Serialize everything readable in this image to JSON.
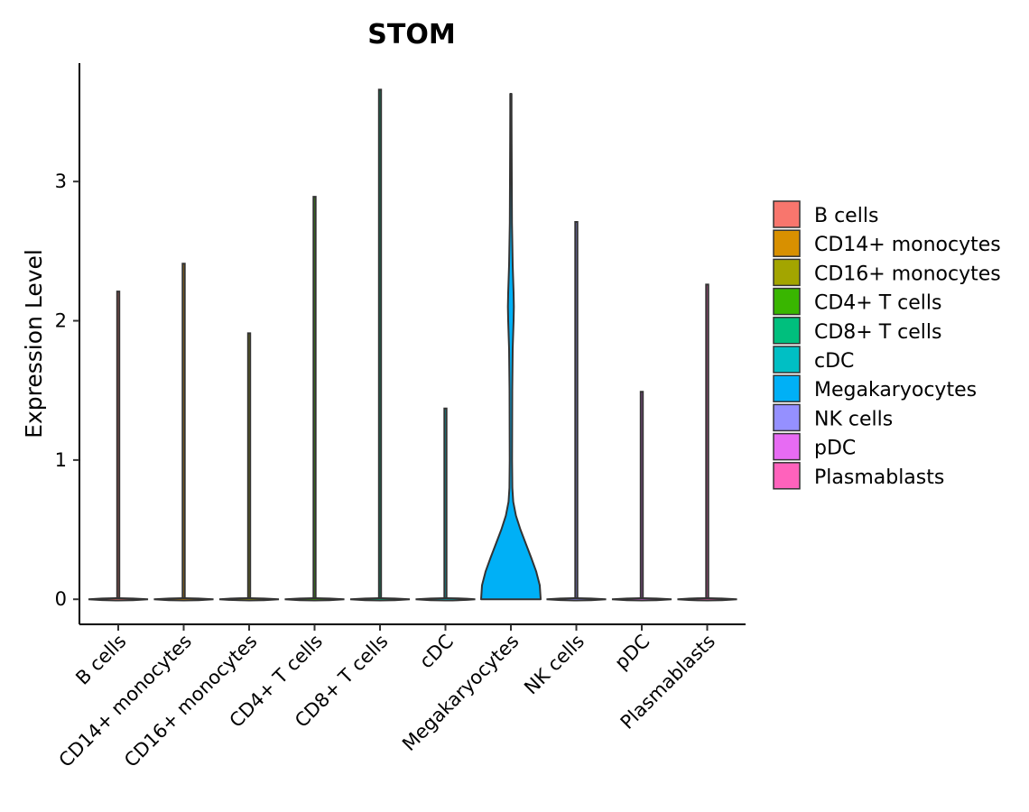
{
  "chart_data": {
    "type": "violin",
    "title": "STOM",
    "xlabel": "",
    "ylabel": "Expression Level",
    "ylim": [
      -0.18,
      3.85
    ],
    "yticks": [
      0,
      1,
      2,
      3
    ],
    "ytick_labels": [
      "0",
      "1",
      "2",
      "3"
    ],
    "categories": [
      "B cells",
      "CD14+ monocytes",
      "CD16+ monocytes",
      "CD4+ T cells",
      "CD8+ T cells",
      "cDC",
      "Megakaryocytes",
      "NK cells",
      "pDC",
      "Plasmablasts"
    ],
    "max_values": [
      2.21,
      2.41,
      1.91,
      2.89,
      3.66,
      1.37,
      3.63,
      2.71,
      1.49,
      2.26
    ],
    "colors": [
      "#F8766D",
      "#D89000",
      "#A3A500",
      "#39B600",
      "#00BF7D",
      "#00BFC4",
      "#00B0F6",
      "#9590FF",
      "#E76BF3",
      "#FF62BC"
    ],
    "megakaryocyte_density": [
      [
        0.0,
        1.0
      ],
      [
        0.1,
        0.97
      ],
      [
        0.2,
        0.85
      ],
      [
        0.3,
        0.68
      ],
      [
        0.4,
        0.5
      ],
      [
        0.5,
        0.32
      ],
      [
        0.6,
        0.17
      ],
      [
        0.7,
        0.08
      ],
      [
        0.8,
        0.05
      ],
      [
        1.0,
        0.04
      ],
      [
        1.5,
        0.045
      ],
      [
        1.8,
        0.06
      ],
      [
        2.0,
        0.09
      ],
      [
        2.1,
        0.1
      ],
      [
        2.2,
        0.09
      ],
      [
        2.4,
        0.06
      ],
      [
        2.7,
        0.035
      ],
      [
        3.0,
        0.03
      ],
      [
        3.3,
        0.025
      ],
      [
        3.5,
        0.02
      ],
      [
        3.63,
        0.02
      ]
    ]
  },
  "legend": {
    "items": [
      "B cells",
      "CD14+ monocytes",
      "CD16+ monocytes",
      "CD4+ T cells",
      "CD8+ T cells",
      "cDC",
      "Megakaryocytes",
      "NK cells",
      "pDC",
      "Plasmablasts"
    ]
  }
}
